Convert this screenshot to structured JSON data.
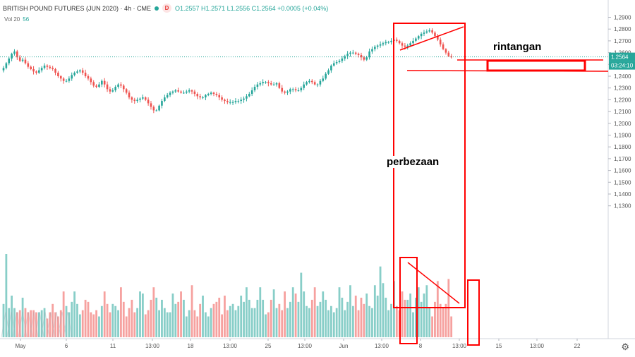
{
  "header": {
    "symbol": "BRITISH POUND FUTURES (JUN 2020) · 4h · CME",
    "badge": "D",
    "ohlc": "O1.2557  H1.2571  L1.2556  C1.2564  +0.0005 (+0.04%)"
  },
  "volume": {
    "label": "Vol 20",
    "value": "56"
  },
  "annotations": {
    "resistance": "rintangan",
    "divergence": "perbezaan"
  },
  "price_marker": {
    "price": "1.2564",
    "countdown": "03:24:10"
  },
  "icons": {
    "settings": "gear-icon"
  },
  "colors": {
    "up": "#26a69a",
    "down": "#ef5350",
    "annotation": "#ff0000",
    "axis_text": "#555555"
  },
  "chart_data": {
    "type": "candlestick",
    "price_axis": {
      "ticks": [
        "1,2900",
        "1,2800",
        "1,2700",
        "1,2600",
        "1,2500",
        "1,2400",
        "1,2300",
        "1,2200",
        "1,2100",
        "1,2000",
        "1,1900",
        "1,1800",
        "1,1700",
        "1,1600",
        "1,1500",
        "1,1400",
        "1,1300"
      ],
      "range": [
        1.125,
        1.295
      ]
    },
    "time_axis": {
      "ticks": [
        "May",
        "6",
        "11",
        "13:00",
        "18",
        "13:00",
        "25",
        "13:00",
        "Jun",
        "13:00",
        "8",
        "13:00",
        "15",
        "13:00",
        "22"
      ]
    },
    "resistance_level": 1.2625,
    "close_series": [
      1.247,
      1.251,
      1.255,
      1.259,
      1.261,
      1.256,
      1.253,
      1.254,
      1.251,
      1.248,
      1.246,
      1.244,
      1.243,
      1.245,
      1.247,
      1.249,
      1.248,
      1.247,
      1.246,
      1.243,
      1.24,
      1.238,
      1.236,
      1.236,
      1.238,
      1.241,
      1.243,
      1.244,
      1.245,
      1.243,
      1.24,
      1.238,
      1.235,
      1.232,
      1.231,
      1.233,
      1.236,
      1.233,
      1.229,
      1.227,
      1.228,
      1.231,
      1.233,
      1.232,
      1.229,
      1.226,
      1.222,
      1.22,
      1.219,
      1.22,
      1.221,
      1.222,
      1.22,
      1.217,
      1.214,
      1.211,
      1.211,
      1.215,
      1.219,
      1.222,
      1.224,
      1.226,
      1.227,
      1.228,
      1.227,
      1.226,
      1.226,
      1.227,
      1.228,
      1.227,
      1.225,
      1.223,
      1.222,
      1.222,
      1.224,
      1.225,
      1.226,
      1.225,
      1.224,
      1.222,
      1.22,
      1.219,
      1.218,
      1.218,
      1.218,
      1.219,
      1.219,
      1.22,
      1.221,
      1.223,
      1.225,
      1.228,
      1.231,
      1.233,
      1.234,
      1.235,
      1.235,
      1.234,
      1.233,
      1.233,
      1.234,
      1.23,
      1.227,
      1.226,
      1.227,
      1.229,
      1.229,
      1.228,
      1.228,
      1.23,
      1.233,
      1.235,
      1.236,
      1.235,
      1.233,
      1.233,
      1.236,
      1.238,
      1.242,
      1.245,
      1.249,
      1.251,
      1.252,
      1.253,
      1.255,
      1.257,
      1.259,
      1.26,
      1.26,
      1.259,
      1.258,
      1.256,
      1.254,
      1.256,
      1.261,
      1.263,
      1.265,
      1.266,
      1.267,
      1.268,
      1.269,
      1.269,
      1.27,
      1.271,
      1.27,
      1.268,
      1.266,
      1.265,
      1.266,
      1.268,
      1.27,
      1.272,
      1.274,
      1.276,
      1.277,
      1.278,
      1.279,
      1.277,
      1.274,
      1.271,
      1.267,
      1.263,
      1.26,
      1.257,
      1.256
    ],
    "volume_series": [
      16,
      40,
      14,
      20,
      14,
      12,
      13,
      19,
      14,
      12,
      13,
      13,
      12,
      12,
      13,
      14,
      9,
      12,
      16,
      12,
      10,
      13,
      22,
      15,
      12,
      17,
      22,
      16,
      11,
      13,
      18,
      17,
      12,
      11,
      13,
      10,
      15,
      22,
      16,
      12,
      16,
      15,
      13,
      24,
      17,
      10,
      14,
      18,
      12,
      14,
      22,
      21,
      11,
      13,
      18,
      24,
      19,
      13,
      18,
      14,
      12,
      12,
      21,
      16,
      17,
      22,
      18,
      10,
      13,
      25,
      13,
      10,
      16,
      20,
      12,
      10,
      14,
      16,
      17,
      19,
      11,
      20,
      13,
      15,
      16,
      13,
      15,
      20,
      17,
      24,
      18,
      14,
      14,
      18,
      24,
      18,
      11,
      12,
      18,
      23,
      14,
      16,
      13,
      22,
      14,
      17,
      24,
      21,
      17,
      31,
      22,
      15,
      14,
      18,
      24,
      15,
      17,
      22,
      18,
      13,
      15,
      12,
      14,
      24,
      19,
      13,
      17,
      25,
      15,
      20,
      13,
      19,
      16,
      21,
      15,
      14,
      25,
      20,
      34,
      26,
      19,
      13,
      16,
      27,
      15,
      13,
      22,
      18,
      18,
      21,
      12,
      19,
      24,
      17,
      21,
      25,
      14,
      10,
      17,
      27,
      16,
      14,
      16,
      28,
      10
    ]
  }
}
